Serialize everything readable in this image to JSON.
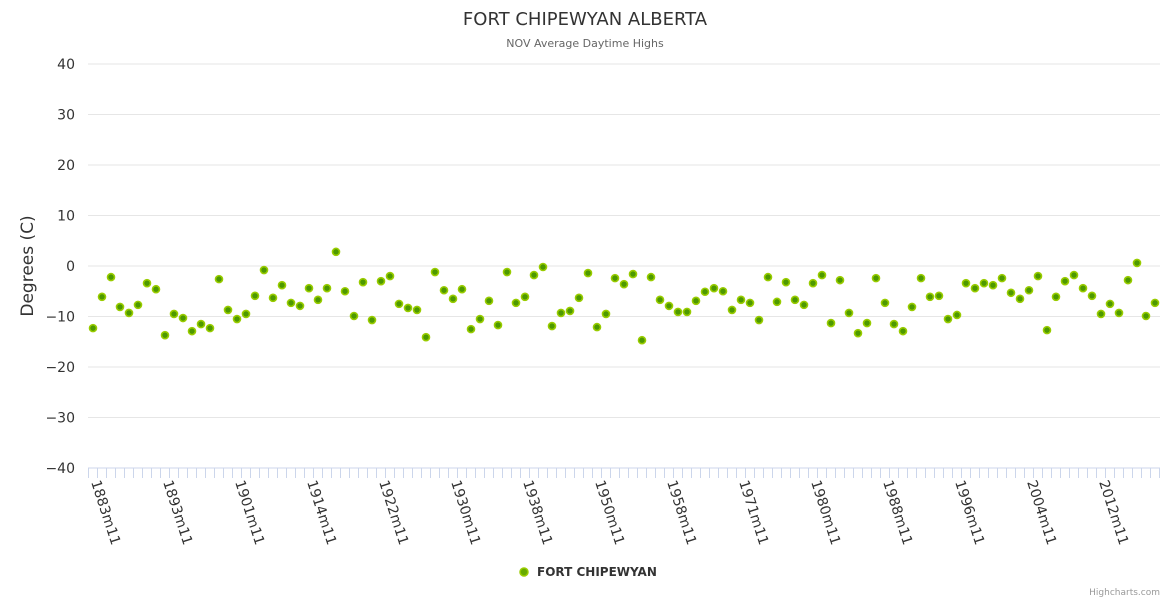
{
  "chart_data": {
    "type": "scatter",
    "title": "FORT CHIPEWYAN ALBERTA",
    "subtitle": "NOV Average Daytime Highs",
    "ylabel": "Degrees (C)",
    "xlabel": "",
    "ylim": [
      -40,
      40
    ],
    "yticks": [
      40,
      30,
      20,
      10,
      0,
      -10,
      -20,
      -30,
      -40
    ],
    "grid": true,
    "legend_position": "bottom-center",
    "xtick_labels": [
      {
        "index": 0,
        "label": "1883m11"
      },
      {
        "index": 8,
        "label": "1893m11"
      },
      {
        "index": 16,
        "label": "1901m11"
      },
      {
        "index": 24,
        "label": "1914m11"
      },
      {
        "index": 32,
        "label": "1922m11"
      },
      {
        "index": 40,
        "label": "1930m11"
      },
      {
        "index": 48,
        "label": "1938m11"
      },
      {
        "index": 56,
        "label": "1950m11"
      },
      {
        "index": 64,
        "label": "1958m11"
      },
      {
        "index": 72,
        "label": "1971m11"
      },
      {
        "index": 80,
        "label": "1980m11"
      },
      {
        "index": 88,
        "label": "1988m11"
      },
      {
        "index": 96,
        "label": "1996m11"
      },
      {
        "index": 104,
        "label": "2004m11"
      },
      {
        "index": 112,
        "label": "2012m11"
      }
    ],
    "series": [
      {
        "name": "FORT CHIPEWYAN",
        "color": "#66aa00",
        "values": [
          -12.3,
          -6.1,
          -2.2,
          -8.1,
          -9.3,
          -7.7,
          -3.4,
          -4.6,
          -13.7,
          -9.5,
          -10.3,
          -12.9,
          -11.5,
          -12.3,
          -2.6,
          -8.7,
          -10.5,
          -9.5,
          -5.9,
          -0.8,
          -6.3,
          -3.8,
          -7.3,
          -7.9,
          -4.4,
          -6.7,
          -4.4,
          2.8,
          -5.0,
          -9.9,
          -3.2,
          -10.7,
          -3.0,
          -2.0,
          -7.5,
          -8.3,
          -8.7,
          -14.1,
          -1.2,
          -4.8,
          -6.5,
          -4.6,
          -12.5,
          -10.5,
          -6.9,
          -11.7,
          -1.2,
          -7.3,
          -6.1,
          -1.8,
          -0.2,
          -11.9,
          -9.3,
          -8.9,
          -6.3,
          -1.4,
          -12.1,
          -9.5,
          -2.4,
          -3.6,
          -1.6,
          -14.7,
          -2.2,
          -6.7,
          -7.9,
          -9.1,
          -9.1,
          -6.9,
          -5.1,
          -4.4,
          -5.0,
          -8.7,
          -6.7,
          -7.3,
          -10.7,
          -2.2,
          -7.1,
          -3.2,
          -6.7,
          -7.7,
          -3.4,
          -1.8,
          -11.3,
          -2.8,
          -9.3,
          -13.3,
          -11.3,
          -2.4,
          -7.3,
          -11.5,
          -12.9,
          -8.1,
          -2.4,
          -6.1,
          -5.9,
          -10.5,
          -9.7,
          -3.4,
          -4.4,
          -3.4,
          -3.8,
          -2.4,
          -5.3,
          -6.5,
          -4.8,
          -2.0,
          -12.7,
          -6.1,
          -3.0,
          -1.8,
          -4.4,
          -5.9,
          -9.5,
          -7.5,
          -9.3,
          -2.8,
          0.6,
          -9.9,
          -7.3
        ]
      }
    ]
  },
  "credits": "Highcharts.com"
}
